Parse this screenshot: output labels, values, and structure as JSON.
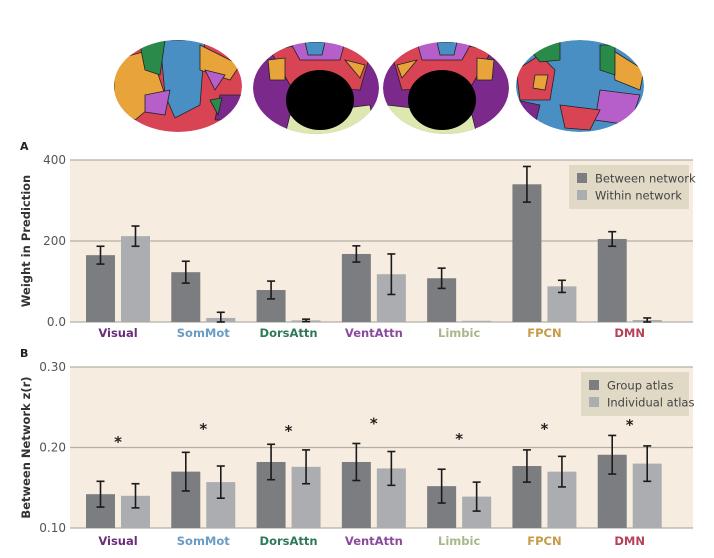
{
  "brain_views": {
    "label": "Brain surface parcellation views",
    "views": [
      "left-lateral",
      "left-medial",
      "right-medial",
      "right-lateral"
    ],
    "network_colors": {
      "Visual": "#7b2a8c",
      "SomMot": "#4a8fc4",
      "DorsAttn": "#2a8a4a",
      "VentAttn": "#b65fcb",
      "Limbic": "#dde8b0",
      "FPCN": "#e8a33a",
      "DMN": "#d94455"
    }
  },
  "chart_data": [
    {
      "type": "bar",
      "panel_label": "A",
      "title": "",
      "xlabel": "",
      "ylabel": "Weight in Prediction",
      "ylim": [
        0,
        400
      ],
      "yticks": [
        0,
        200,
        400
      ],
      "ytick_labels": [
        "0.0",
        "200",
        "400"
      ],
      "grid": true,
      "categories": [
        "Visual",
        "SomMot",
        "DorsAttn",
        "VentAttn",
        "Limbic",
        "FPCN",
        "DMN"
      ],
      "category_colors": [
        "#6b2d7a",
        "#6a9cc4",
        "#2f7a5a",
        "#8a4a9e",
        "#a8b88a",
        "#c79a4a",
        "#b8405a"
      ],
      "series": [
        {
          "name": "Between network",
          "color": "#7c7d80",
          "values": [
            165,
            123,
            79,
            168,
            108,
            340,
            205
          ],
          "errors": [
            22,
            27,
            22,
            20,
            25,
            44,
            18
          ]
        },
        {
          "name": "Within network",
          "color": "#acadb0",
          "values": [
            212,
            10,
            4,
            118,
            3,
            88,
            5
          ],
          "errors": [
            25,
            14,
            3,
            50,
            0,
            15,
            5
          ]
        }
      ],
      "legend_position": "top-right",
      "background": "#f6ecdf",
      "legend_background": "#e0d9c6",
      "asterisks": []
    },
    {
      "type": "bar",
      "panel_label": "B",
      "title": "",
      "xlabel": "",
      "ylabel": "Between Network z(r)",
      "ylim": [
        0.1,
        0.3
      ],
      "yticks": [
        0.1,
        0.2,
        0.3
      ],
      "ytick_labels": [
        "0.10",
        "0.20",
        "0.30"
      ],
      "grid": true,
      "categories": [
        "Visual",
        "SomMot",
        "DorsAttn",
        "VentAttn",
        "Limbic",
        "FPCN",
        "DMN"
      ],
      "category_colors": [
        "#6b2d7a",
        "#6a9cc4",
        "#2f7a5a",
        "#8a4a9e",
        "#a8b88a",
        "#c79a4a",
        "#b8405a"
      ],
      "series": [
        {
          "name": "Group atlas",
          "color": "#7c7d80",
          "values": [
            0.142,
            0.17,
            0.182,
            0.182,
            0.152,
            0.177,
            0.191
          ],
          "errors": [
            0.016,
            0.024,
            0.022,
            0.023,
            0.021,
            0.02,
            0.024
          ]
        },
        {
          "name": "Individual atlas",
          "color": "#acadb0",
          "values": [
            0.14,
            0.157,
            0.176,
            0.174,
            0.139,
            0.17,
            0.18
          ],
          "errors": [
            0.015,
            0.02,
            0.021,
            0.021,
            0.018,
            0.019,
            0.022
          ]
        }
      ],
      "legend_position": "top-right",
      "background": "#f6ecdf",
      "legend_background": "#e0d9c6",
      "asterisks": [
        {
          "category": "Visual",
          "symbol": "*",
          "y": 0.208
        },
        {
          "category": "SomMot",
          "symbol": "*",
          "y": 0.224
        },
        {
          "category": "DorsAttn",
          "symbol": "*",
          "y": 0.222
        },
        {
          "category": "VentAttn",
          "symbol": "*",
          "y": 0.231
        },
        {
          "category": "Limbic",
          "symbol": "*",
          "y": 0.212
        },
        {
          "category": "FPCN",
          "symbol": "*",
          "y": 0.224
        },
        {
          "category": "DMN",
          "symbol": "*",
          "y": 0.229
        }
      ]
    }
  ]
}
